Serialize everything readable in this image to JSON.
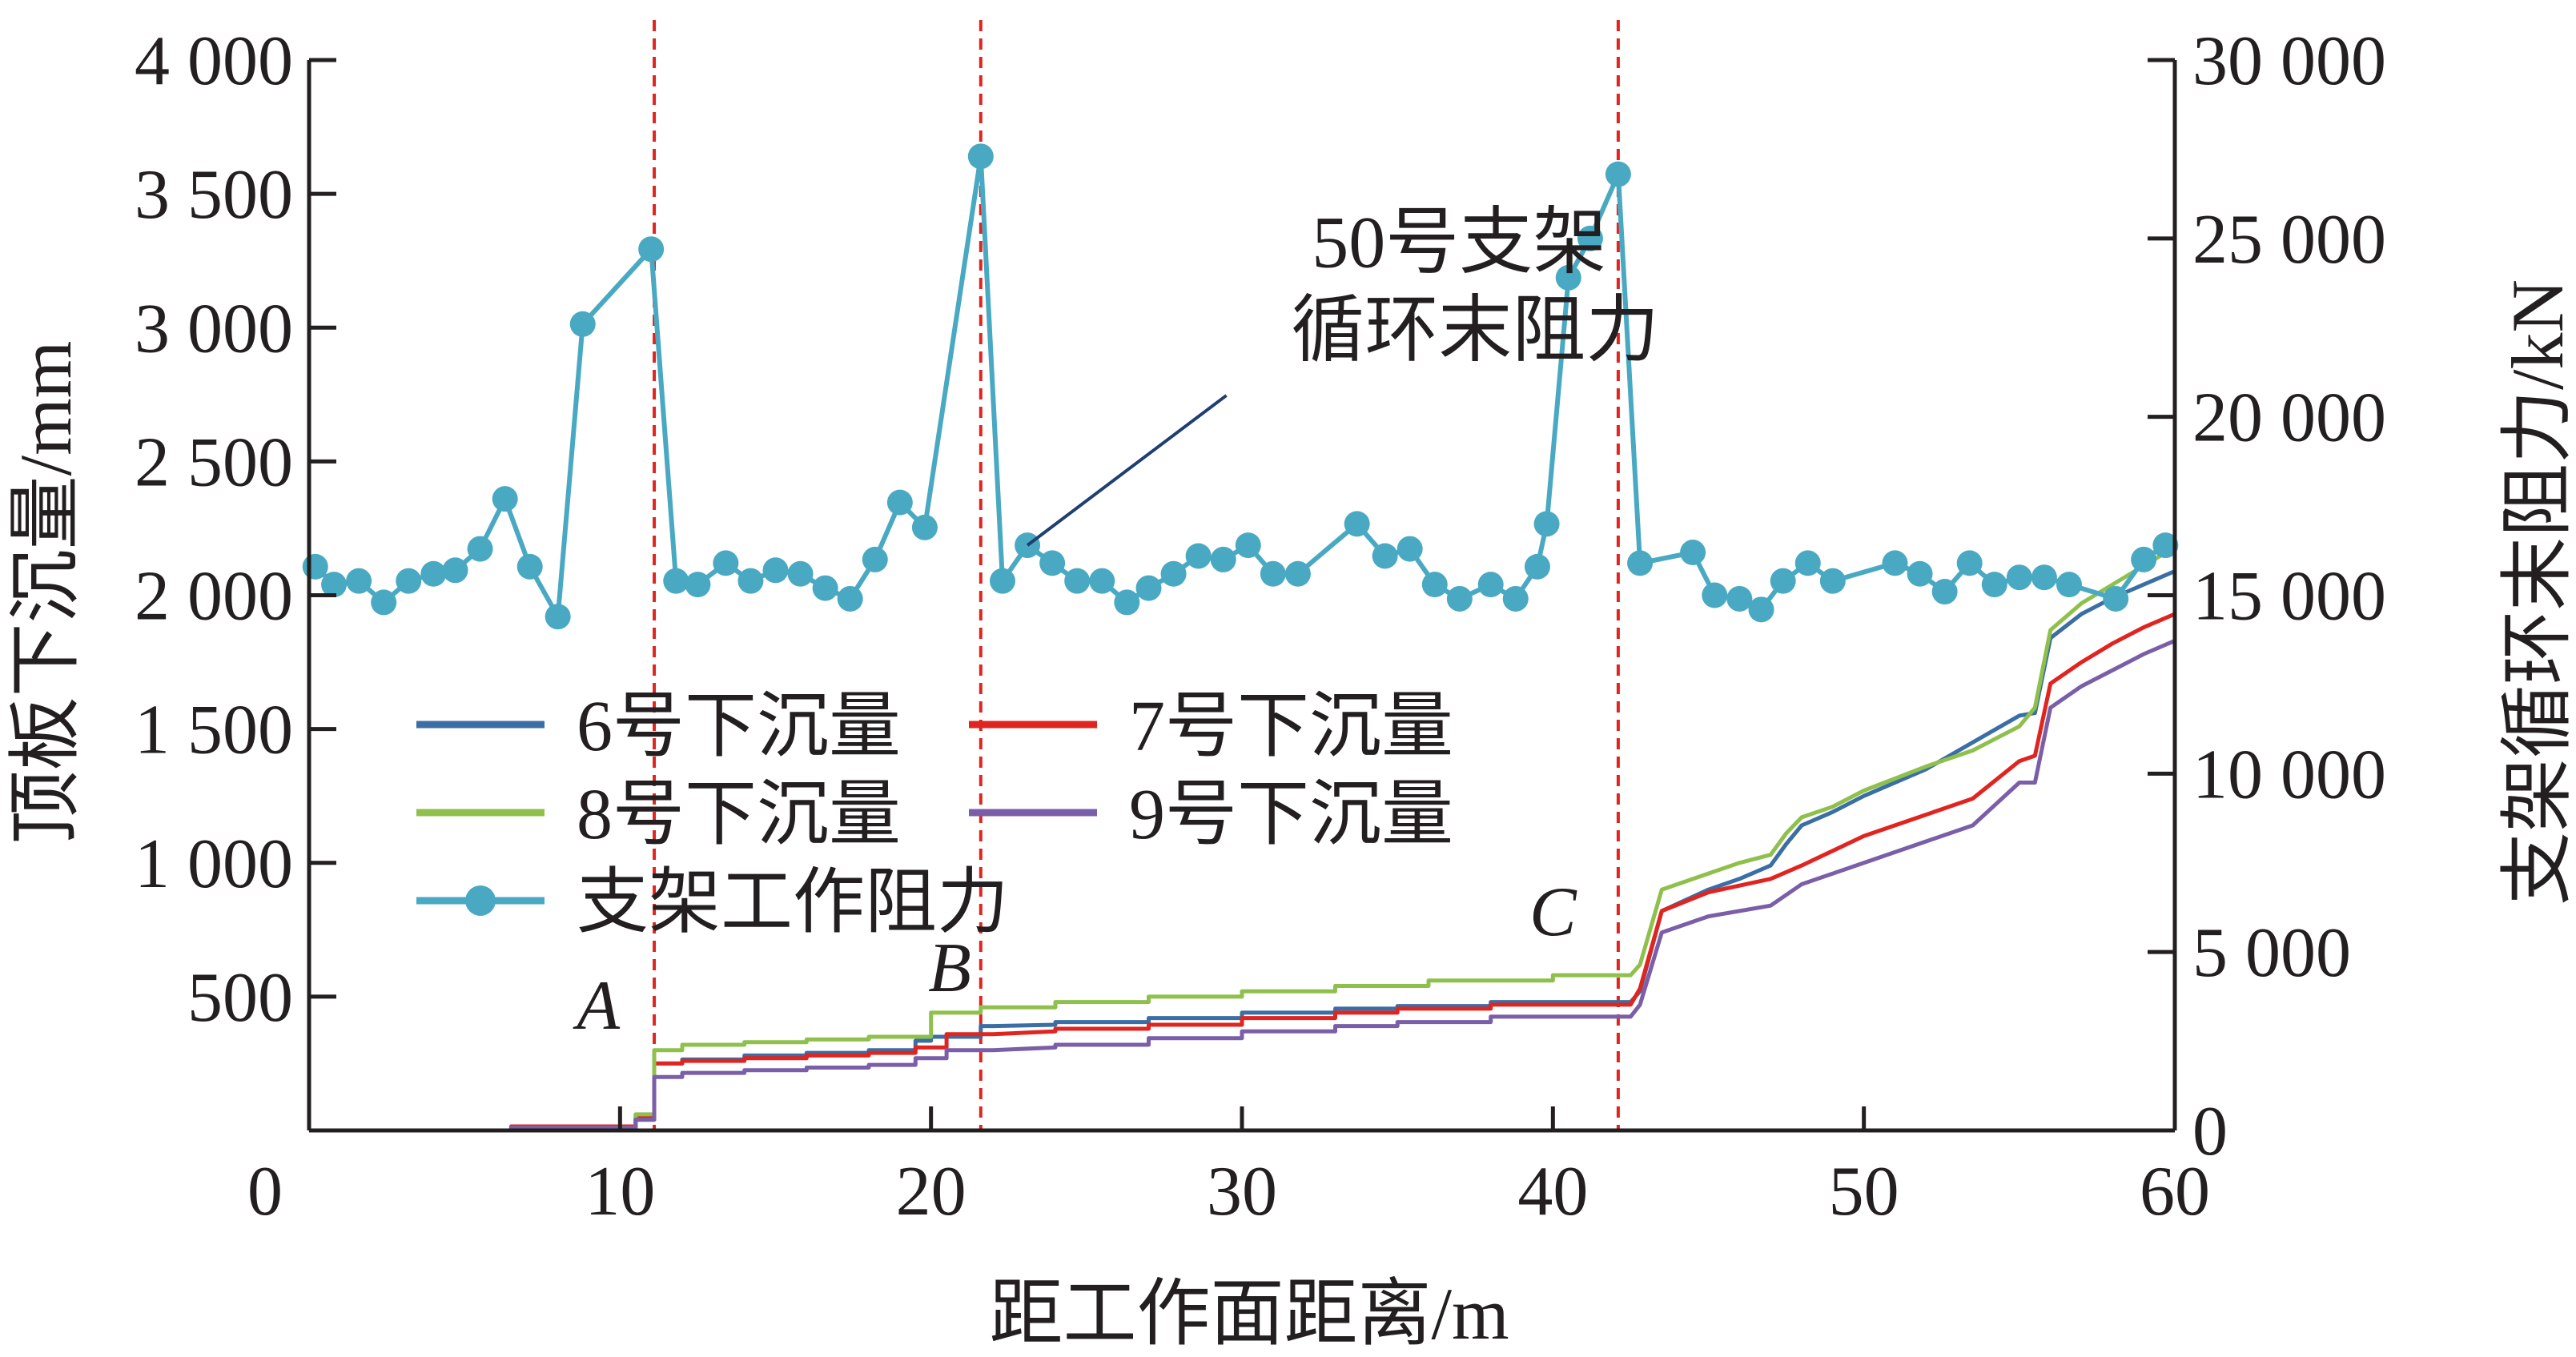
{
  "chart_data": {
    "type": "line",
    "xlabel": "距工作面距离/m",
    "ylabel_left": "顶板下沉量/mm",
    "ylabel_right": "支架循环末阻力/kN",
    "xlim": [
      0,
      60
    ],
    "ylim_left": [
      0,
      4000
    ],
    "ylim_right": [
      0,
      30000
    ],
    "x_ticks": [
      "0",
      "10",
      "20",
      "30",
      "40",
      "50",
      "60"
    ],
    "y_left_ticks": [
      {
        "v": 500,
        "label": "500"
      },
      {
        "v": 1000,
        "label": "1 000"
      },
      {
        "v": 1500,
        "label": "1 500"
      },
      {
        "v": 2000,
        "label": "2 000"
      },
      {
        "v": 2500,
        "label": "2 500"
      },
      {
        "v": 3000,
        "label": "3 000"
      },
      {
        "v": 3500,
        "label": "3 500"
      },
      {
        "v": 4000,
        "label": "4 000"
      }
    ],
    "y_right_ticks": [
      {
        "v": 0,
        "label": "0"
      },
      {
        "v": 5000,
        "label": "5 000"
      },
      {
        "v": 10000,
        "label": "10 000"
      },
      {
        "v": 15000,
        "label": "15 000"
      },
      {
        "v": 20000,
        "label": "20 000"
      },
      {
        "v": 25000,
        "label": "25 000"
      },
      {
        "v": 30000,
        "label": "30 000"
      }
    ],
    "vlines": [
      {
        "x": 11.1,
        "label": "A",
        "label_x": 9.3,
        "label_y": 380
      },
      {
        "x": 21.6,
        "label": "B",
        "label_x": 20.6,
        "label_y": 520
      },
      {
        "x": 42.1,
        "label": "C",
        "label_x": 40.0,
        "label_y": 730
      }
    ],
    "annotation": {
      "lines": [
        "50号支架",
        "循环末阻力"
      ],
      "x": 37.5,
      "y_right": 24200,
      "pointer_from": [
        29.5,
        20600
      ],
      "pointer_to": [
        23.1,
        16400
      ]
    },
    "legend": {
      "position": "center-left",
      "entries": [
        {
          "name": "6号下沉量",
          "color": "#3a6ea5",
          "marker": false
        },
        {
          "name": "7号下沉量",
          "color": "#e02420",
          "marker": false
        },
        {
          "name": "8号下沉量",
          "color": "#8fc04c",
          "marker": false
        },
        {
          "name": "9号下沉量",
          "color": "#7b5ea8",
          "marker": false
        },
        {
          "name": "支架工作阻力",
          "color": "#4aa9c2",
          "marker": true
        }
      ]
    },
    "series": [
      {
        "name": "6号下沉量",
        "axis": "left",
        "color": "#3a6ea5",
        "points": [
          [
            0,
            0
          ],
          [
            6.5,
            0
          ],
          [
            6.5,
            10
          ],
          [
            10.5,
            10
          ],
          [
            10.5,
            40
          ],
          [
            11.1,
            40
          ],
          [
            11.1,
            250
          ],
          [
            12,
            250
          ],
          [
            12,
            265
          ],
          [
            14,
            265
          ],
          [
            14,
            280
          ],
          [
            16,
            280
          ],
          [
            16,
            290
          ],
          [
            18,
            290
          ],
          [
            18,
            300
          ],
          [
            19.5,
            300
          ],
          [
            19.5,
            335
          ],
          [
            20,
            335
          ],
          [
            20,
            350
          ],
          [
            21.6,
            350
          ],
          [
            21.6,
            390
          ],
          [
            22,
            390
          ],
          [
            24,
            395
          ],
          [
            24,
            405
          ],
          [
            27,
            405
          ],
          [
            27,
            420
          ],
          [
            30,
            420
          ],
          [
            30,
            440
          ],
          [
            33,
            440
          ],
          [
            33,
            455
          ],
          [
            35,
            455
          ],
          [
            35,
            465
          ],
          [
            38,
            465
          ],
          [
            38,
            480
          ],
          [
            42.5,
            480
          ],
          [
            42.8,
            520
          ],
          [
            43.5,
            820
          ],
          [
            45,
            900
          ],
          [
            46,
            940
          ],
          [
            47,
            990
          ],
          [
            47.5,
            1070
          ],
          [
            48,
            1140
          ],
          [
            49,
            1190
          ],
          [
            50,
            1250
          ],
          [
            52,
            1350
          ],
          [
            53.5,
            1450
          ],
          [
            55,
            1550
          ],
          [
            55.5,
            1560
          ],
          [
            56,
            1840
          ],
          [
            57,
            1930
          ],
          [
            58,
            1990
          ],
          [
            59,
            2040
          ],
          [
            60,
            2090
          ]
        ]
      },
      {
        "name": "7号下沉量",
        "axis": "left",
        "color": "#e02420",
        "points": [
          [
            0,
            0
          ],
          [
            6.5,
            0
          ],
          [
            6.5,
            15
          ],
          [
            10.5,
            15
          ],
          [
            10.5,
            50
          ],
          [
            11.1,
            50
          ],
          [
            11.1,
            250
          ],
          [
            12,
            250
          ],
          [
            12,
            260
          ],
          [
            14,
            260
          ],
          [
            14,
            270
          ],
          [
            16,
            270
          ],
          [
            16,
            280
          ],
          [
            18,
            280
          ],
          [
            18,
            290
          ],
          [
            19.5,
            290
          ],
          [
            19.5,
            310
          ],
          [
            20.5,
            310
          ],
          [
            20.5,
            360
          ],
          [
            22,
            360
          ],
          [
            24,
            370
          ],
          [
            24,
            380
          ],
          [
            27,
            380
          ],
          [
            27,
            395
          ],
          [
            30,
            395
          ],
          [
            30,
            420
          ],
          [
            33,
            420
          ],
          [
            33,
            440
          ],
          [
            35,
            440
          ],
          [
            35,
            455
          ],
          [
            38,
            455
          ],
          [
            38,
            470
          ],
          [
            42.5,
            470
          ],
          [
            42.8,
            530
          ],
          [
            43.5,
            820
          ],
          [
            45,
            890
          ],
          [
            47,
            940
          ],
          [
            48,
            990
          ],
          [
            50,
            1100
          ],
          [
            52,
            1180
          ],
          [
            53.5,
            1240
          ],
          [
            55,
            1380
          ],
          [
            55.5,
            1400
          ],
          [
            56,
            1670
          ],
          [
            57,
            1750
          ],
          [
            58,
            1820
          ],
          [
            59,
            1880
          ],
          [
            60,
            1930
          ]
        ]
      },
      {
        "name": "8号下沉量",
        "axis": "left",
        "color": "#8fc04c",
        "points": [
          [
            0,
            0
          ],
          [
            6.5,
            0
          ],
          [
            6.5,
            10
          ],
          [
            10.5,
            10
          ],
          [
            10.5,
            60
          ],
          [
            11.1,
            60
          ],
          [
            11.1,
            300
          ],
          [
            12,
            300
          ],
          [
            12,
            320
          ],
          [
            14,
            320
          ],
          [
            14,
            330
          ],
          [
            16,
            330
          ],
          [
            16,
            340
          ],
          [
            18,
            340
          ],
          [
            18,
            350
          ],
          [
            20,
            350
          ],
          [
            20,
            440
          ],
          [
            21.6,
            440
          ],
          [
            21.6,
            460
          ],
          [
            24,
            460
          ],
          [
            24,
            480
          ],
          [
            27,
            480
          ],
          [
            27,
            500
          ],
          [
            30,
            500
          ],
          [
            30,
            520
          ],
          [
            33,
            520
          ],
          [
            33,
            540
          ],
          [
            36,
            540
          ],
          [
            36,
            560
          ],
          [
            40,
            560
          ],
          [
            40,
            580
          ],
          [
            42.5,
            580
          ],
          [
            42.8,
            620
          ],
          [
            43.5,
            900
          ],
          [
            45,
            960
          ],
          [
            46,
            1000
          ],
          [
            47,
            1030
          ],
          [
            47.5,
            1110
          ],
          [
            48,
            1170
          ],
          [
            49,
            1210
          ],
          [
            50,
            1270
          ],
          [
            52,
            1360
          ],
          [
            53.5,
            1420
          ],
          [
            55,
            1510
          ],
          [
            55.5,
            1580
          ],
          [
            56,
            1870
          ],
          [
            57,
            1970
          ],
          [
            58,
            2040
          ],
          [
            59,
            2110
          ],
          [
            60,
            2180
          ]
        ]
      },
      {
        "name": "9号下沉量",
        "axis": "left",
        "color": "#7b5ea8",
        "points": [
          [
            0,
            0
          ],
          [
            6.5,
            0
          ],
          [
            6.5,
            10
          ],
          [
            10.5,
            10
          ],
          [
            10.5,
            40
          ],
          [
            11.1,
            40
          ],
          [
            11.1,
            200
          ],
          [
            12,
            200
          ],
          [
            12,
            215
          ],
          [
            14,
            215
          ],
          [
            14,
            225
          ],
          [
            16,
            225
          ],
          [
            16,
            235
          ],
          [
            18,
            235
          ],
          [
            18,
            245
          ],
          [
            19.5,
            245
          ],
          [
            19.5,
            270
          ],
          [
            20.5,
            270
          ],
          [
            20.5,
            300
          ],
          [
            22,
            300
          ],
          [
            24,
            310
          ],
          [
            24,
            320
          ],
          [
            27,
            320
          ],
          [
            27,
            345
          ],
          [
            30,
            345
          ],
          [
            30,
            370
          ],
          [
            33,
            370
          ],
          [
            33,
            390
          ],
          [
            35,
            390
          ],
          [
            35,
            405
          ],
          [
            38,
            405
          ],
          [
            38,
            425
          ],
          [
            42.5,
            425
          ],
          [
            42.8,
            470
          ],
          [
            43.5,
            740
          ],
          [
            45,
            800
          ],
          [
            47,
            840
          ],
          [
            48,
            920
          ],
          [
            50,
            1000
          ],
          [
            52,
            1080
          ],
          [
            53.5,
            1140
          ],
          [
            55,
            1300
          ],
          [
            55.5,
            1300
          ],
          [
            56,
            1580
          ],
          [
            57,
            1660
          ],
          [
            58,
            1720
          ],
          [
            59,
            1780
          ],
          [
            60,
            1830
          ]
        ]
      },
      {
        "name": "支架工作阻力",
        "axis": "right",
        "color": "#4aa9c2",
        "marker": true,
        "points": [
          [
            0.2,
            15800
          ],
          [
            0.8,
            15300
          ],
          [
            1.6,
            15400
          ],
          [
            2.4,
            14800
          ],
          [
            3.2,
            15400
          ],
          [
            4,
            15600
          ],
          [
            4.7,
            15700
          ],
          [
            5.5,
            16300
          ],
          [
            6.3,
            17700
          ],
          [
            7.1,
            15800
          ],
          [
            8,
            14400
          ],
          [
            8.8,
            22600
          ],
          [
            11,
            24700
          ],
          [
            11.8,
            15400
          ],
          [
            12.5,
            15300
          ],
          [
            13.4,
            15900
          ],
          [
            14.2,
            15400
          ],
          [
            15,
            15700
          ],
          [
            15.8,
            15600
          ],
          [
            16.6,
            15200
          ],
          [
            17.4,
            14900
          ],
          [
            18.2,
            16000
          ],
          [
            19,
            17600
          ],
          [
            19.8,
            16900
          ],
          [
            21.6,
            27300
          ],
          [
            22.3,
            15400
          ],
          [
            23.1,
            16400
          ],
          [
            23.9,
            15900
          ],
          [
            24.7,
            15400
          ],
          [
            25.5,
            15400
          ],
          [
            26.3,
            14800
          ],
          [
            27,
            15200
          ],
          [
            27.8,
            15600
          ],
          [
            28.6,
            16100
          ],
          [
            29.4,
            16000
          ],
          [
            30.2,
            16400
          ],
          [
            31,
            15600
          ],
          [
            31.8,
            15600
          ],
          [
            33.7,
            17000
          ],
          [
            34.6,
            16100
          ],
          [
            35.4,
            16300
          ],
          [
            36.2,
            15300
          ],
          [
            37,
            14900
          ],
          [
            38,
            15300
          ],
          [
            38.8,
            14900
          ],
          [
            39.5,
            15800
          ],
          [
            39.8,
            17000
          ],
          [
            40.5,
            23900
          ],
          [
            41.2,
            25000
          ],
          [
            42.1,
            26800
          ],
          [
            42.8,
            15900
          ],
          [
            44.5,
            16200
          ],
          [
            45.2,
            15000
          ],
          [
            46,
            14900
          ],
          [
            46.7,
            14600
          ],
          [
            47.4,
            15400
          ],
          [
            48.2,
            15900
          ],
          [
            49,
            15400
          ],
          [
            51,
            15900
          ],
          [
            51.8,
            15600
          ],
          [
            52.6,
            15100
          ],
          [
            53.4,
            15900
          ],
          [
            54.2,
            15300
          ],
          [
            55,
            15500
          ],
          [
            55.8,
            15500
          ],
          [
            56.6,
            15300
          ],
          [
            58.1,
            14900
          ],
          [
            59,
            16000
          ],
          [
            59.7,
            16400
          ]
        ]
      }
    ]
  }
}
